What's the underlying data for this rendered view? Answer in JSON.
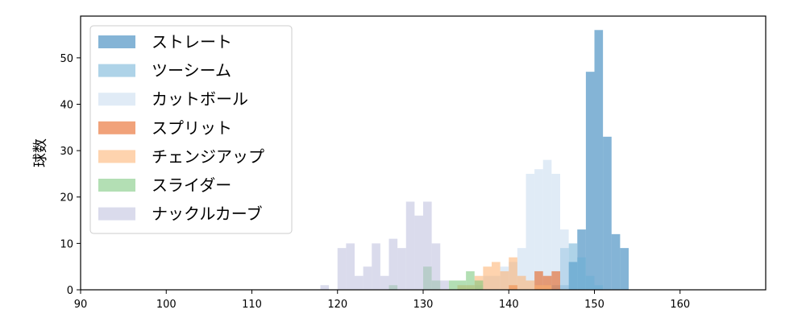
{
  "chart_data": {
    "type": "bar",
    "subtype": "overlapping-histogram",
    "ylabel": "球数",
    "xlabel": "",
    "xlim": [
      90,
      170
    ],
    "ylim": [
      0,
      59
    ],
    "xticks": [
      90,
      100,
      110,
      120,
      130,
      140,
      150,
      160
    ],
    "yticks": [
      0,
      10,
      20,
      30,
      40,
      50
    ],
    "legend_position": "upper-left",
    "bin_width": 1,
    "series": [
      {
        "name": "ストレート",
        "color": "#1f77b4",
        "bins": [
          [
            146,
            1
          ],
          [
            147,
            6
          ],
          [
            148,
            13
          ],
          [
            149,
            47
          ],
          [
            150,
            56
          ],
          [
            151,
            33
          ],
          [
            152,
            12
          ],
          [
            153,
            9
          ]
        ]
      },
      {
        "name": "ツーシーム",
        "color": "#6baed6",
        "bins": [
          [
            145,
            1
          ],
          [
            146,
            9
          ],
          [
            147,
            10
          ],
          [
            148,
            7
          ],
          [
            149,
            3
          ],
          [
            150,
            1
          ]
        ]
      },
      {
        "name": "カットボール",
        "color": "#c6dbef",
        "bins": [
          [
            136,
            1
          ],
          [
            137,
            3
          ],
          [
            138,
            3
          ],
          [
            139,
            5
          ],
          [
            140,
            6
          ],
          [
            141,
            9
          ],
          [
            142,
            25
          ],
          [
            143,
            26
          ],
          [
            144,
            28
          ],
          [
            145,
            25
          ],
          [
            146,
            13
          ]
        ]
      },
      {
        "name": "スプリット",
        "color": "#e6550d",
        "bins": [
          [
            140,
            1
          ],
          [
            143,
            4
          ],
          [
            144,
            3
          ],
          [
            145,
            4
          ]
        ]
      },
      {
        "name": "チェンジアップ",
        "color": "#fdae6b",
        "bins": [
          [
            134,
            1
          ],
          [
            135,
            1
          ],
          [
            136,
            3
          ],
          [
            137,
            5
          ],
          [
            138,
            6
          ],
          [
            139,
            4
          ],
          [
            140,
            7
          ],
          [
            141,
            3
          ],
          [
            142,
            2
          ],
          [
            143,
            1
          ],
          [
            144,
            1
          ]
        ]
      },
      {
        "name": "スライダー",
        "color": "#74c476",
        "bins": [
          [
            126,
            1
          ],
          [
            130,
            5
          ],
          [
            131,
            2
          ],
          [
            133,
            2
          ],
          [
            134,
            2
          ],
          [
            135,
            4
          ],
          [
            136,
            2
          ]
        ]
      },
      {
        "name": "ナックルカーブ",
        "color": "#bcbddc",
        "bins": [
          [
            118,
            1
          ],
          [
            120,
            9
          ],
          [
            121,
            10
          ],
          [
            122,
            3
          ],
          [
            123,
            5
          ],
          [
            124,
            10
          ],
          [
            125,
            3
          ],
          [
            126,
            11
          ],
          [
            127,
            9
          ],
          [
            128,
            19
          ],
          [
            129,
            16
          ],
          [
            130,
            19
          ],
          [
            131,
            10
          ],
          [
            132,
            2
          ]
        ]
      }
    ]
  }
}
